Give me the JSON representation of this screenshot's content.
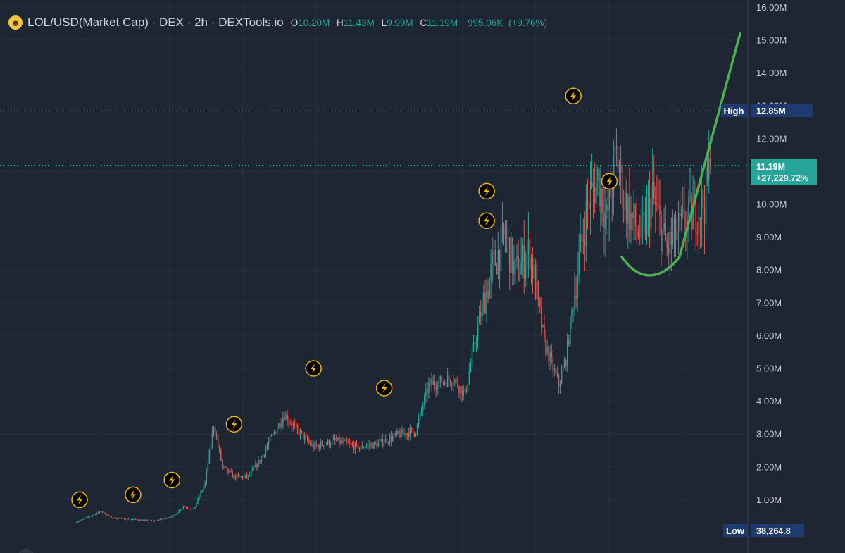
{
  "header": {
    "symbol_icon": "laughing-face-icon",
    "title": "LOL/USD(Market Cap) · DEX · 2h · DEXTools.io",
    "ohlc": {
      "o_label": "O",
      "o": "10.20M",
      "h_label": "H",
      "h": "11.43M",
      "l_label": "L",
      "l": "9.99M",
      "c_label": "C",
      "c": "11.19M",
      "change": "995.06K",
      "change_pct": "(+9.76%)"
    }
  },
  "colors": {
    "background": "#1e2533",
    "up": "#26a69a",
    "down": "#ef5350",
    "annotation": "#4caf50",
    "tag": "#1e3a6e"
  },
  "price_tags": {
    "high_label": "High",
    "high_value": "12.85M",
    "current_value": "11.19M",
    "current_change": "+27,229.72%",
    "low_label": "Low",
    "low_value": "38,264.8"
  },
  "chart_data": {
    "type": "candlestick",
    "y_unit": "market cap (USD)",
    "ylim": [
      0,
      16000000
    ],
    "y_ticks": [
      1000000,
      2000000,
      3000000,
      4000000,
      5000000,
      6000000,
      7000000,
      8000000,
      9000000,
      10000000,
      11000000,
      12000000,
      13000000,
      14000000,
      15000000,
      16000000
    ],
    "y_tick_labels": [
      "1.00M",
      "2.00M",
      "3.00M",
      "4.00M",
      "5.00M",
      "6.00M",
      "7.00M",
      "8.00M",
      "9.00M",
      "10.00M",
      "11.00M",
      "12.00M",
      "13.00M",
      "14.00M",
      "15.00M",
      "16.00M"
    ],
    "grid": true,
    "last_close": 11190000,
    "high": 12850000,
    "low": 38264.8,
    "trend_path": [
      [
        0,
        0.3
      ],
      [
        10,
        0.5
      ],
      [
        18,
        0.65
      ],
      [
        25,
        0.45
      ],
      [
        40,
        0.4
      ],
      [
        55,
        0.35
      ],
      [
        68,
        0.5
      ],
      [
        75,
        0.8
      ],
      [
        82,
        0.7
      ],
      [
        90,
        1.5
      ],
      [
        96,
        3.3
      ],
      [
        102,
        2.0
      ],
      [
        110,
        1.7
      ],
      [
        120,
        1.7
      ],
      [
        128,
        2.2
      ],
      [
        136,
        2.9
      ],
      [
        145,
        3.6
      ],
      [
        152,
        3.2
      ],
      [
        165,
        2.6
      ],
      [
        180,
        2.8
      ],
      [
        195,
        2.6
      ],
      [
        210,
        2.7
      ],
      [
        225,
        3.0
      ],
      [
        236,
        3.1
      ],
      [
        245,
        4.5
      ],
      [
        262,
        4.7
      ],
      [
        270,
        4.2
      ],
      [
        280,
        6.5
      ],
      [
        290,
        8.2
      ],
      [
        298,
        9.0
      ],
      [
        305,
        7.9
      ],
      [
        315,
        8.6
      ],
      [
        325,
        5.8
      ],
      [
        335,
        4.5
      ],
      [
        340,
        5.3
      ],
      [
        348,
        8.0
      ],
      [
        355,
        10.0
      ],
      [
        362,
        10.8
      ],
      [
        368,
        9.5
      ],
      [
        375,
        11.5
      ],
      [
        380,
        10.2
      ],
      [
        386,
        9.5
      ],
      [
        392,
        9.0
      ],
      [
        400,
        10.2
      ],
      [
        410,
        8.6
      ],
      [
        418,
        9.2
      ],
      [
        428,
        9.7
      ],
      [
        436,
        10.1
      ],
      [
        440,
        11.19
      ]
    ],
    "event_markers": [
      {
        "icon": "lightning-icon",
        "x": 1,
        "price": 1000000
      },
      {
        "icon": "lightning-icon",
        "x": 38,
        "price": 1150000
      },
      {
        "icon": "lightning-icon",
        "x": 65,
        "price": 1600000
      },
      {
        "icon": "lightning-icon",
        "x": 108,
        "price": 3300000
      },
      {
        "icon": "lightning-icon",
        "x": 163,
        "price": 5000000
      },
      {
        "icon": "lightning-icon",
        "x": 212,
        "price": 4400000
      },
      {
        "icon": "lightning-icon",
        "x": 283,
        "price": 10400000
      },
      {
        "icon": "lightning-icon",
        "x": 283,
        "price": 9500000
      },
      {
        "icon": "lightning-icon",
        "x": 343,
        "price": 13300000
      },
      {
        "icon": "lightning-icon",
        "x": 368,
        "price": 10700000
      }
    ],
    "annotation": {
      "type": "cup-and-breakout",
      "cup": [
        [
          379,
          8.4
        ],
        [
          394,
          7.75
        ],
        [
          410,
          8.0
        ],
        [
          419,
          8.4
        ]
      ],
      "breakout_to": [
        461,
        15.2
      ]
    }
  }
}
